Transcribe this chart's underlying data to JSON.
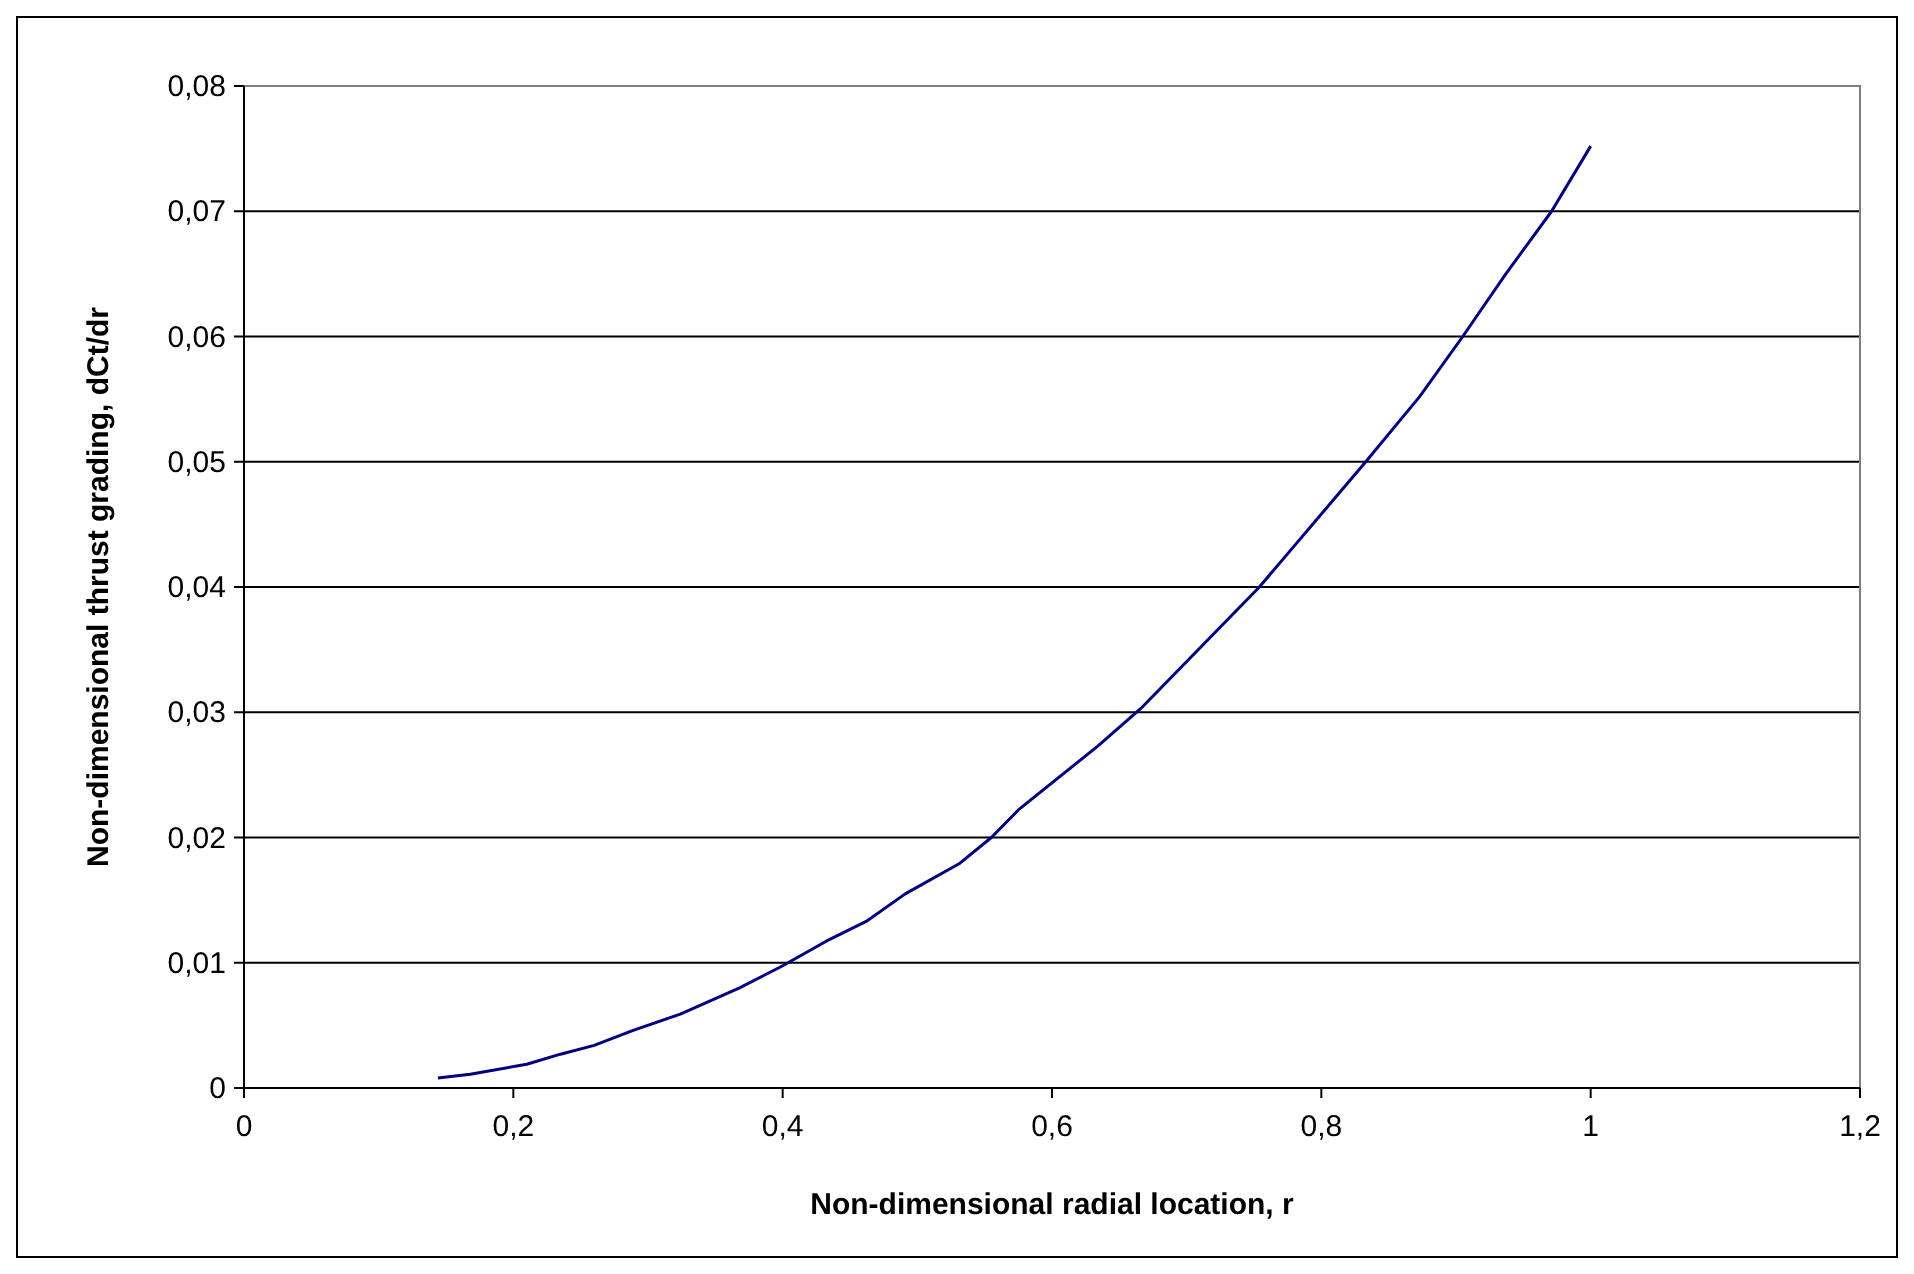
{
  "chart_data": {
    "type": "line",
    "xlabel": "Non-dimensional radial location, r",
    "ylabel": "Non-dimensional thrust grading, dCt/dr",
    "xlim": [
      0,
      1.2
    ],
    "xticks": [
      {
        "value": 0,
        "label": "0"
      },
      {
        "value": 0.2,
        "label": "0,2"
      },
      {
        "value": 0.4,
        "label": "0,4"
      },
      {
        "value": 0.6,
        "label": "0,6"
      },
      {
        "value": 0.8,
        "label": "0,8"
      },
      {
        "value": 1,
        "label": "1"
      },
      {
        "value": 1.2,
        "label": "1,2"
      }
    ],
    "ylim": [
      0,
      0.08
    ],
    "yticks": [
      {
        "value": 0,
        "label": "0"
      },
      {
        "value": 0.01,
        "label": "0,01"
      },
      {
        "value": 0.02,
        "label": "0,02"
      },
      {
        "value": 0.03,
        "label": "0,03"
      },
      {
        "value": 0.04,
        "label": "0,04"
      },
      {
        "value": 0.05,
        "label": "0,05"
      },
      {
        "value": 0.06,
        "label": "0,06"
      },
      {
        "value": 0.07,
        "label": "0,07"
      },
      {
        "value": 0.08,
        "label": "0,08"
      }
    ],
    "grid": "y",
    "marker": "none",
    "line_style": "solid",
    "x": [
      0.144,
      0.168,
      0.21,
      0.235,
      0.26,
      0.289,
      0.324,
      0.368,
      0.399,
      0.432,
      0.462,
      0.491,
      0.531,
      0.555,
      0.575,
      0.634,
      0.666,
      0.754,
      0.833,
      0.873,
      0.905,
      0.937,
      0.971,
      1.0
    ],
    "series": [
      {
        "color": "#000080",
        "values": [
          0.0008,
          0.0011,
          0.0019,
          0.0027,
          0.0034,
          0.0046,
          0.0059,
          0.008,
          0.0097,
          0.0117,
          0.0133,
          0.0155,
          0.0179,
          0.02,
          0.0222,
          0.0273,
          0.0303,
          0.04,
          0.05,
          0.0552,
          0.06,
          0.065,
          0.07,
          0.0752
        ]
      }
    ]
  }
}
